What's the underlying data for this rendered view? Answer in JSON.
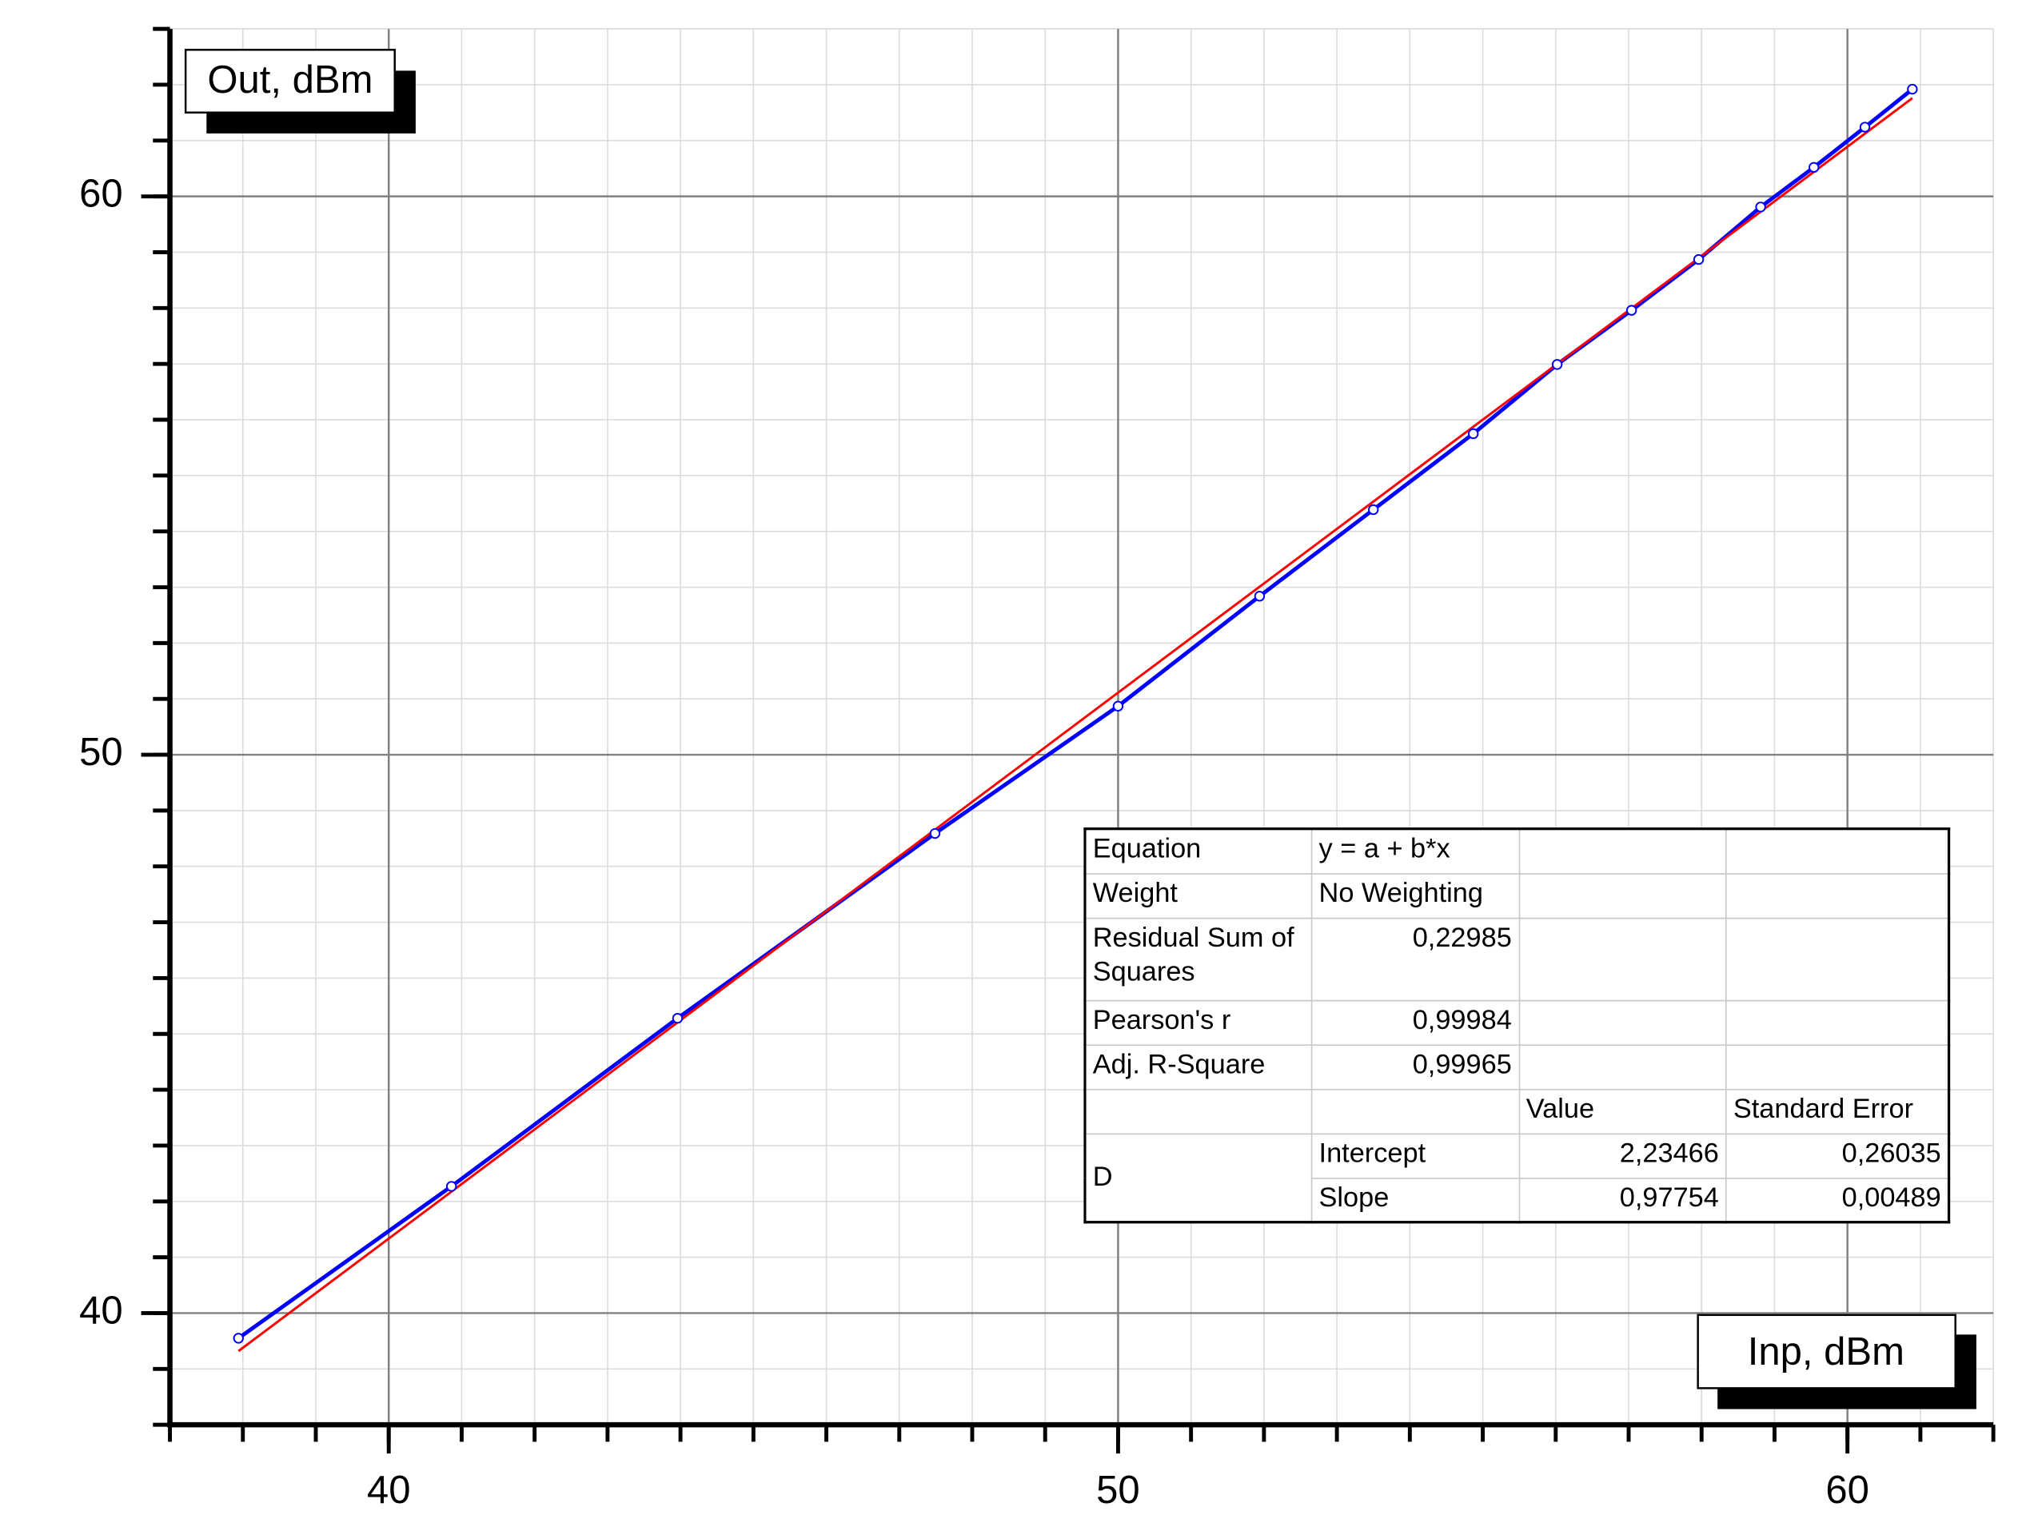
{
  "chart_data": {
    "type": "line",
    "xlabel": "Inp, dBm",
    "ylabel": "Out, dBm",
    "xlim": [
      37,
      62
    ],
    "ylim": [
      38,
      63
    ],
    "xticks": [
      40,
      50,
      60
    ],
    "yticks": [
      40,
      50,
      60
    ],
    "xminor": 1,
    "yminor": 1,
    "grid": true,
    "x": [
      37.94,
      40.86,
      43.96,
      47.49,
      50.0,
      51.94,
      53.5,
      54.87,
      56.02,
      57.04,
      57.96,
      58.81,
      59.54,
      60.24,
      60.89
    ],
    "series": [
      {
        "color": "#0000ff",
        "values": [
          39.55,
          42.27,
          45.28,
          48.59,
          50.87,
          52.84,
          54.39,
          55.75,
          56.99,
          57.96,
          58.87,
          59.81,
          60.52,
          61.24,
          61.92
        ]
      }
    ],
    "fit": {
      "color": "#ff0000",
      "x": [
        37.94,
        60.89
      ],
      "values": [
        39.32,
        61.76
      ]
    },
    "table": {
      "stats": [
        {
          "label": "Equation",
          "value": "y = a + b*x"
        },
        {
          "label": "Weight",
          "value": "No Weighting"
        },
        {
          "label": "Residual Sum of Squares",
          "value": "0,22985"
        },
        {
          "label": "Pearson's r",
          "value": "0,99984"
        },
        {
          "label": "Adj. R-Square",
          "value": "0,99965"
        }
      ],
      "header": [
        "Value",
        "Standard Error"
      ],
      "group": "D",
      "params": [
        {
          "name": "Intercept",
          "value": "2,23466",
          "error": "0,26035"
        },
        {
          "name": "Slope",
          "value": "0,97754",
          "error": "0,00489"
        }
      ]
    }
  }
}
